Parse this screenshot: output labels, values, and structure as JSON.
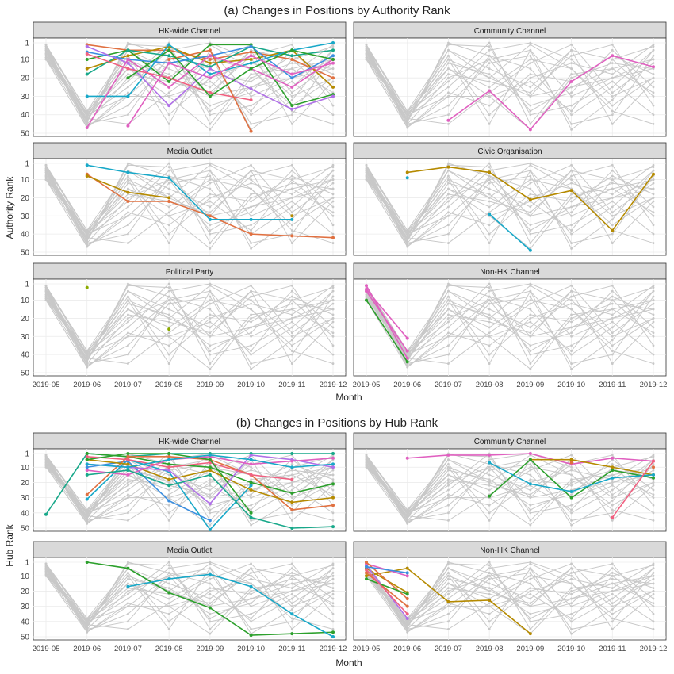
{
  "figure": {
    "section_a_title": "(a) Changes in Positions by Authority Rank",
    "section_b_title": "(b) Changes in Positions by Hub Rank",
    "ylabel_a": "Authority Rank",
    "ylabel_b": "Hub Rank",
    "xlabel": "Month",
    "xlabel_b": "Month"
  },
  "chart_data": {
    "type": "line",
    "months": [
      "2019-05",
      "2019-06",
      "2019-07",
      "2019-08",
      "2019-09",
      "2019-10",
      "2019-11",
      "2019-12"
    ],
    "y_ticks": [
      1,
      10,
      20,
      30,
      40,
      50
    ],
    "ylim": [
      50,
      1
    ],
    "y_reversed": true,
    "grid": true,
    "colors": {
      "grey": "#c8c8c8",
      "orange": "#e07040",
      "olive": "#b58a00",
      "green": "#2ca02c",
      "teal": "#18a88a",
      "cyan": "#18a8c8",
      "blue": "#3a8ee0",
      "purple": "#b070e8",
      "pink": "#e060c0",
      "rose": "#f06080",
      "lime": "#8cab00"
    },
    "background": [
      [
        2,
        40,
        10,
        20,
        30,
        25,
        15,
        10
      ],
      [
        5,
        45,
        20,
        10,
        5,
        30,
        20,
        10
      ],
      [
        8,
        42,
        15,
        25,
        10,
        15,
        35,
        20
      ],
      [
        3,
        38,
        5,
        15,
        25,
        5,
        10,
        30
      ],
      [
        10,
        47,
        30,
        30,
        48,
        20,
        12,
        15
      ],
      [
        6,
        44,
        1,
        8,
        15,
        40,
        25,
        5
      ],
      [
        4,
        41,
        25,
        5,
        1,
        10,
        30,
        20
      ],
      [
        7,
        43,
        12,
        18,
        35,
        28,
        5,
        25
      ],
      [
        9,
        39,
        8,
        40,
        20,
        12,
        18,
        2
      ],
      [
        2,
        46,
        35,
        12,
        8,
        45,
        40,
        8
      ],
      [
        5,
        40,
        18,
        22,
        28,
        8,
        2,
        35
      ],
      [
        3,
        44,
        2,
        3,
        40,
        35,
        22,
        40
      ],
      [
        8,
        42,
        45,
        28,
        12,
        2,
        28,
        12
      ],
      [
        6,
        39,
        22,
        1,
        45,
        18,
        15,
        28
      ],
      [
        4,
        47,
        28,
        35,
        18,
        22,
        8,
        18
      ],
      [
        7,
        41,
        10,
        45,
        5,
        48,
        32,
        5
      ],
      [
        9,
        45,
        40,
        8,
        30,
        5,
        45,
        22
      ],
      [
        2,
        38,
        15,
        30,
        22,
        38,
        10,
        3
      ],
      [
        5,
        43,
        5,
        20,
        2,
        15,
        38,
        45
      ],
      [
        10,
        40,
        30,
        10,
        38,
        25,
        20,
        15
      ]
    ],
    "panels": [
      {
        "section": "a",
        "title": "HK-wide Channel",
        "series": [
          {
            "color": "orange",
            "values": [
              null,
              2,
              5,
              5,
              10,
              6,
              10,
              20
            ]
          },
          {
            "color": "olive",
            "values": [
              null,
              15,
              8,
              3,
              12,
              10,
              5,
              25
            ]
          },
          {
            "color": "green",
            "values": [
              null,
              10,
              5,
              22,
              2,
              2,
              35,
              29
            ]
          },
          {
            "color": "teal",
            "values": [
              null,
              18,
              5,
              8,
              14,
              3,
              8,
              5
            ]
          },
          {
            "color": "cyan",
            "values": [
              null,
              30,
              30,
              2,
              18,
              12,
              5,
              1
            ]
          },
          {
            "color": "blue",
            "values": [
              null,
              6,
              10,
              12,
              8,
              3,
              20,
              8
            ]
          },
          {
            "color": "purple",
            "values": [
              null,
              3,
              12,
              35,
              15,
              26,
              37,
              30
            ]
          },
          {
            "color": "pink",
            "values": [
              null,
              47,
              10,
              25,
              8,
              15,
              25,
              10
            ]
          },
          {
            "color": "rose",
            "values": [
              null,
              7,
              15,
              20,
              28,
              32,
              null,
              null
            ]
          },
          {
            "color": "orange",
            "values": [
              null,
              null,
              null,
              10,
              5,
              49,
              null,
              null
            ]
          },
          {
            "color": "green",
            "values": [
              null,
              null,
              20,
              5,
              30,
              15,
              5,
              10
            ]
          },
          {
            "color": "pink",
            "values": [
              null,
              null,
              46,
              12,
              20,
              8,
              18,
              12
            ]
          }
        ]
      },
      {
        "section": "a",
        "title": "Community Channel",
        "series": [
          {
            "color": "pink",
            "values": [
              null,
              null,
              43,
              27,
              48,
              22,
              8,
              14
            ]
          }
        ]
      },
      {
        "section": "a",
        "title": "Media Outlet",
        "series": [
          {
            "color": "orange",
            "values": [
              null,
              7,
              22,
              22,
              30,
              40,
              41,
              42
            ]
          },
          {
            "color": "olive",
            "values": [
              null,
              8,
              17,
              20,
              null,
              null,
              30,
              null
            ]
          },
          {
            "color": "cyan",
            "values": [
              null,
              2,
              6,
              9,
              32,
              32,
              32,
              null
            ]
          }
        ]
      },
      {
        "section": "a",
        "title": "Civic Organisation",
        "series": [
          {
            "color": "olive",
            "values": [
              null,
              6,
              3,
              6,
              21,
              16,
              38,
              7
            ]
          },
          {
            "color": "cyan",
            "values": [
              null,
              9,
              null,
              29,
              49,
              null,
              null,
              null
            ]
          }
        ]
      },
      {
        "section": "a",
        "title": "Political Party",
        "series": [
          {
            "color": "lime",
            "values": [
              null,
              3,
              null,
              26,
              null,
              null,
              null,
              null
            ]
          }
        ]
      },
      {
        "section": "a",
        "title": "Non-HK Channel",
        "series": [
          {
            "color": "pink",
            "values": [
              2,
              42,
              null,
              null,
              null,
              null,
              null,
              null
            ]
          },
          {
            "color": "pink",
            "values": [
              5,
              38,
              null,
              null,
              null,
              null,
              null,
              null
            ]
          },
          {
            "color": "pink",
            "values": [
              4,
              31,
              null,
              null,
              null,
              null,
              null,
              null
            ]
          },
          {
            "color": "green",
            "values": [
              10,
              44,
              null,
              null,
              null,
              null,
              null,
              null
            ]
          }
        ]
      },
      {
        "section": "b",
        "title": "HK-wide Channel",
        "series": [
          {
            "color": "teal",
            "values": [
              41,
              1,
              3,
              1,
              1,
              1,
              1,
              1
            ]
          },
          {
            "color": "green",
            "values": [
              null,
              1,
              3,
              8,
              10,
              20,
              27,
              21
            ]
          },
          {
            "color": "cyan",
            "values": [
              null,
              31,
              5,
              13,
              51,
              22,
              null,
              null
            ]
          },
          {
            "color": "blue",
            "values": [
              null,
              10,
              6,
              32,
              45,
              null,
              null,
              null
            ]
          },
          {
            "color": "orange",
            "values": [
              null,
              28,
              3,
              3,
              5,
              15,
              38,
              35
            ]
          },
          {
            "color": "olive",
            "values": [
              null,
              5,
              8,
              18,
              12,
              25,
              33,
              30
            ]
          },
          {
            "color": "purple",
            "values": [
              null,
              8,
              10,
              12,
              34,
              2,
              5,
              10
            ]
          },
          {
            "color": "pink",
            "values": [
              null,
              12,
              15,
              5,
              3,
              8,
              6,
              4
            ]
          },
          {
            "color": "rose",
            "values": [
              null,
              3,
              5,
              10,
              7,
              15,
              18,
              null
            ]
          },
          {
            "color": "teal",
            "values": [
              null,
              15,
              12,
              22,
              15,
              43,
              50,
              49
            ]
          },
          {
            "color": "green",
            "values": [
              null,
              5,
              1,
              1,
              5,
              40,
              null,
              null
            ]
          },
          {
            "color": "cyan",
            "values": [
              null,
              8,
              10,
              5,
              2,
              5,
              10,
              8
            ]
          }
        ]
      },
      {
        "section": "b",
        "title": "Community Channel",
        "series": [
          {
            "color": "pink",
            "values": [
              null,
              4,
              2,
              2,
              1,
              8,
              4,
              6
            ]
          },
          {
            "color": "olive",
            "values": [
              null,
              null,
              null,
              null,
              5,
              5,
              10,
              15
            ]
          },
          {
            "color": "green",
            "values": [
              null,
              null,
              null,
              29,
              5,
              30,
              12,
              17
            ]
          },
          {
            "color": "cyan",
            "values": [
              null,
              null,
              null,
              7,
              21,
              26,
              17,
              15
            ]
          },
          {
            "color": "rose",
            "values": [
              null,
              null,
              null,
              null,
              null,
              null,
              43,
              6
            ]
          },
          {
            "color": "orange",
            "values": [
              null,
              null,
              null,
              null,
              null,
              7,
              null,
              10
            ]
          }
        ]
      },
      {
        "section": "b",
        "title": "Media Outlet",
        "series": [
          {
            "color": "green",
            "values": [
              null,
              1,
              5,
              21,
              31,
              49,
              48,
              47
            ]
          },
          {
            "color": "cyan",
            "values": [
              null,
              null,
              17,
              12,
              9,
              17,
              35,
              50
            ]
          }
        ]
      },
      {
        "section": "b",
        "title": "Non-HK Channel",
        "series": [
          {
            "color": "olive",
            "values": [
              10,
              5,
              27,
              26,
              48,
              null,
              null,
              null
            ]
          },
          {
            "color": "olive",
            "values": [
              5,
              21,
              null,
              null,
              null,
              null,
              null,
              null
            ]
          },
          {
            "color": "purple",
            "values": [
              3,
              38,
              null,
              null,
              null,
              null,
              null,
              null
            ]
          },
          {
            "color": "pink",
            "values": [
              2,
              10,
              null,
              null,
              null,
              null,
              null,
              null
            ]
          },
          {
            "color": "orange",
            "values": [
              8,
              30,
              null,
              null,
              null,
              null,
              null,
              null
            ]
          },
          {
            "color": "orange",
            "values": [
              1,
              25,
              null,
              null,
              null,
              null,
              null,
              null
            ]
          },
          {
            "color": "green",
            "values": [
              12,
              22,
              null,
              null,
              null,
              null,
              null,
              null
            ]
          },
          {
            "color": "rose",
            "values": [
              6,
              35,
              null,
              null,
              null,
              null,
              null,
              null
            ]
          },
          {
            "color": "blue",
            "values": [
              4,
              8,
              null,
              null,
              null,
              null,
              null,
              null
            ]
          }
        ]
      }
    ]
  }
}
